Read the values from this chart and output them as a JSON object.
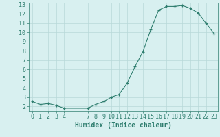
{
  "x": [
    0,
    1,
    2,
    3,
    4,
    7,
    8,
    9,
    10,
    11,
    12,
    13,
    14,
    15,
    16,
    17,
    18,
    19,
    20,
    21,
    22,
    23
  ],
  "y": [
    2.5,
    2.2,
    2.3,
    2.1,
    1.8,
    1.8,
    2.2,
    2.5,
    3.0,
    3.3,
    4.5,
    6.3,
    7.9,
    10.3,
    12.4,
    12.8,
    12.8,
    12.9,
    12.6,
    12.1,
    11.0,
    9.9
  ],
  "line_color": "#2e7d6e",
  "marker_color": "#2e7d6e",
  "bg_color": "#d8f0f0",
  "grid_color": "#b8d8d8",
  "xlabel": "Humidex (Indice chaleur)",
  "xlabel_fontsize": 7,
  "ylim": [
    1.5,
    13.2
  ],
  "xlim": [
    -0.5,
    23.5
  ],
  "yticks": [
    2,
    3,
    4,
    5,
    6,
    7,
    8,
    9,
    10,
    11,
    12,
    13
  ],
  "xticks": [
    0,
    1,
    2,
    3,
    4,
    7,
    8,
    9,
    10,
    11,
    12,
    13,
    14,
    15,
    16,
    17,
    18,
    19,
    20,
    21,
    22,
    23
  ],
  "tick_color": "#2e7d6e",
  "tick_fontsize": 6
}
